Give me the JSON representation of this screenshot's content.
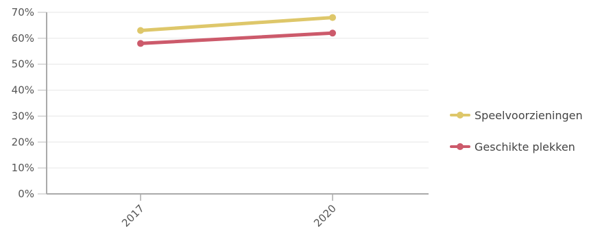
{
  "chart_data": {
    "type": "line",
    "categories": [
      "2017",
      "2020"
    ],
    "series": [
      {
        "name": "Speelvoorzieningen",
        "values": [
          63,
          68
        ],
        "color": "#DEC76A"
      },
      {
        "name": "Geschikte plekken",
        "values": [
          58,
          62
        ],
        "color": "#CC5A6B"
      }
    ],
    "ylim": [
      0,
      70
    ],
    "yticks": [
      0,
      10,
      20,
      30,
      40,
      50,
      60,
      70
    ],
    "ytick_suffix": "%",
    "grid": true,
    "legend_position": "right"
  }
}
